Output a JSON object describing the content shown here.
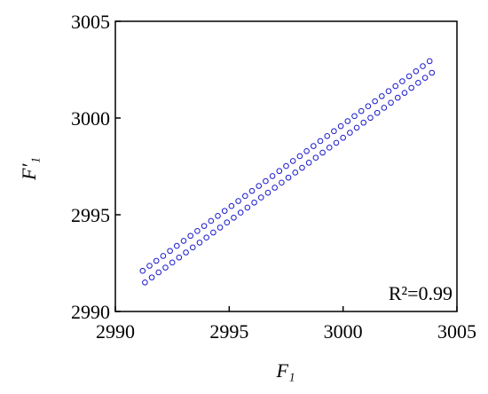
{
  "chart_data": {
    "type": "scatter",
    "xlabel": "F₁",
    "ylabel": "F′₁",
    "annotation": "R²=0.99",
    "xlim": [
      2990,
      3005
    ],
    "ylim": [
      2990,
      3005
    ],
    "xticks": [
      2990,
      2995,
      3000,
      3005
    ],
    "yticks": [
      2990,
      2995,
      3000,
      3005
    ],
    "color": "#1a1acc",
    "x": [
      2991.2,
      2991.3,
      2991.5,
      2991.6,
      2991.8,
      2991.9,
      2992.1,
      2992.2,
      2992.4,
      2992.5,
      2992.7,
      2992.8,
      2993.0,
      2993.1,
      2993.3,
      2993.4,
      2993.6,
      2993.7,
      2993.9,
      2994.0,
      2994.2,
      2994.3,
      2994.5,
      2994.6,
      2994.8,
      2994.9,
      2995.1,
      2995.2,
      2995.4,
      2995.5,
      2995.7,
      2995.8,
      2996.0,
      2996.1,
      2996.3,
      2996.4,
      2996.6,
      2996.7,
      2996.9,
      2997.0,
      2997.2,
      2997.3,
      2997.5,
      2997.6,
      2997.8,
      2997.9,
      2998.1,
      2998.2,
      2998.4,
      2998.5,
      2998.7,
      2998.8,
      2999.0,
      2999.1,
      2999.3,
      2999.4,
      2999.6,
      2999.7,
      2999.9,
      3000.0,
      3000.2,
      3000.3,
      3000.5,
      3000.6,
      3000.8,
      3000.9,
      3001.1,
      3001.2,
      3001.4,
      3001.5,
      3001.7,
      3001.8,
      3002.0,
      3002.1,
      3002.3,
      3002.4,
      3002.6,
      3002.7,
      3002.9,
      3003.0,
      3003.2,
      3003.3,
      3003.5,
      3003.6,
      3003.8,
      3003.9
    ],
    "y": [
      2992.1,
      2991.5,
      2992.36,
      2991.76,
      2992.62,
      2992.02,
      2992.87,
      2992.27,
      2993.13,
      2992.53,
      2993.39,
      2992.79,
      2993.65,
      2993.05,
      2993.91,
      2993.31,
      2994.16,
      2993.56,
      2994.42,
      2993.82,
      2994.68,
      2994.08,
      2994.94,
      2994.34,
      2995.2,
      2994.6,
      2995.45,
      2994.85,
      2995.71,
      2995.11,
      2995.97,
      2995.37,
      2996.23,
      2995.63,
      2996.49,
      2995.89,
      2996.74,
      2996.14,
      2997.0,
      2996.4,
      2997.26,
      2996.66,
      2997.52,
      2996.92,
      2997.78,
      2997.18,
      2998.03,
      2997.43,
      2998.29,
      2997.69,
      2998.55,
      2997.95,
      2998.81,
      2998.21,
      2999.07,
      2998.47,
      2999.32,
      2998.72,
      2999.58,
      2998.98,
      2999.84,
      2999.24,
      3000.1,
      2999.5,
      3000.36,
      2999.76,
      3000.61,
      3000.01,
      3000.87,
      3000.27,
      3001.13,
      3000.53,
      3001.39,
      3000.79,
      3001.65,
      3001.05,
      3001.9,
      3001.3,
      3002.16,
      3001.56,
      3002.42,
      3001.82,
      3002.68,
      3002.08,
      3002.94,
      3002.34
    ]
  }
}
